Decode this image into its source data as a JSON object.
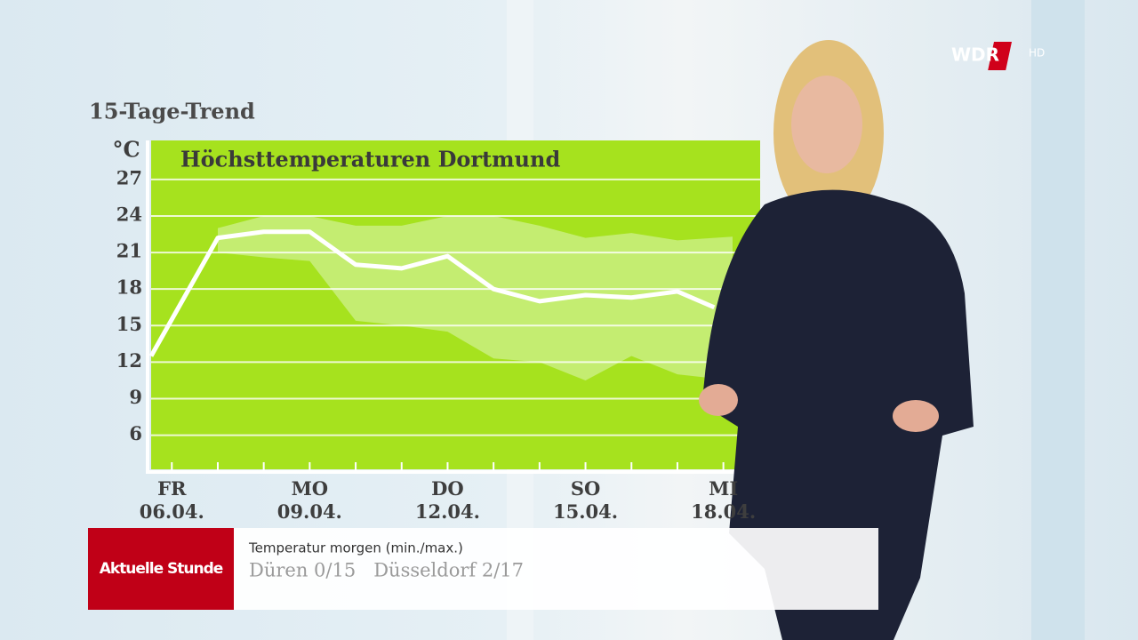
{
  "chart_data": {
    "type": "line",
    "heading": "15-Tage-Trend",
    "title": "Höchsttemperaturen Dortmund",
    "y_unit": "°C",
    "xlim": [
      5.55,
      18.8
    ],
    "ylim": [
      3.2,
      30.2
    ],
    "yticks": [
      6,
      9,
      12,
      15,
      18,
      21,
      24,
      27
    ],
    "xticks": [
      {
        "value": 6,
        "label": "FR\n06.04."
      },
      {
        "value": 9,
        "label": "MO\n09.04."
      },
      {
        "value": 12,
        "label": "DO\n12.04."
      },
      {
        "value": 15,
        "label": "SO\n15.04."
      },
      {
        "value": 18,
        "label": "MI\n18.04."
      }
    ],
    "minor_xticks": [
      7,
      8,
      10,
      11,
      13,
      14,
      16,
      17
    ],
    "grid": true,
    "background_color": "#a6e21e",
    "band": {
      "color": "#c9ef80",
      "x": [
        7,
        8,
        9,
        10,
        11,
        12,
        13,
        14,
        15,
        16,
        17,
        18.2
      ],
      "upper": [
        23,
        24,
        24,
        23.2,
        23.2,
        24,
        24,
        23.2,
        22.2,
        22.6,
        22,
        22.3
      ],
      "lower": [
        21,
        20.6,
        20.3,
        15.4,
        15,
        14.5,
        12.3,
        12,
        10.5,
        12.5,
        11,
        10.5
      ]
    },
    "series": [
      {
        "color": "#ffffff",
        "x": [
          5.55,
          7,
          8,
          9,
          10,
          11,
          12,
          13,
          14,
          15,
          16,
          17,
          17.8
        ],
        "values": [
          12.5,
          22.2,
          22.7,
          22.7,
          20.0,
          19.7,
          20.7,
          18.0,
          17.0,
          17.5,
          17.3,
          17.8,
          16.5
        ]
      }
    ]
  },
  "lower_third": {
    "program": "Aktuelle Stunde",
    "headline": "Temperatur morgen (min./max.)",
    "text": "Düren 0/15   Düsseldorf 2/17"
  },
  "logo": {
    "brand": "WDR",
    "quality": "HD"
  }
}
